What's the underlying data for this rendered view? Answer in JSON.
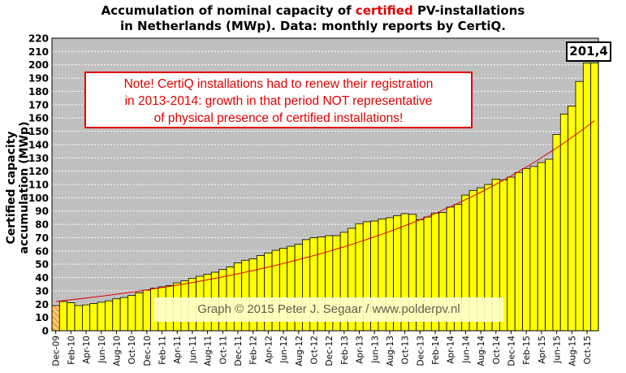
{
  "title": {
    "line1_pre": "Accumulation  of nominal  capacity  of ",
    "line1_highlight": "certified",
    "line1_post": " PV-installations",
    "line2": "in Netherlands (MWp). Data: monthly  reports by CertiQ."
  },
  "note": {
    "line1": "Note! CertiQ installations had to renew their registration",
    "line2": "in 2013-2014:  growth in that period NOT representative",
    "line3": "of physical presence of certified installations!"
  },
  "credit": "Graph © 2015 Peter J. Segaar / www.polderpv.nl",
  "last_value_label": "201,4",
  "colors": {
    "bar_fill": "#ffff00",
    "first_bar_fill": "#ffcc66",
    "bar_stroke": "#000000",
    "plot_bg": "#c0c0c0",
    "trend": "#e00000",
    "note_color": "#e00000"
  },
  "chart_data": {
    "type": "bar",
    "title": "Accumulation of nominal capacity of certified PV-installations in Netherlands (MWp). Data: monthly reports by CertiQ.",
    "xlabel": "",
    "ylabel": "Certified capacity accumulation (MWp)",
    "ylim": [
      0,
      220
    ],
    "yticks": [
      0,
      10,
      20,
      30,
      40,
      50,
      60,
      70,
      80,
      90,
      100,
      110,
      120,
      130,
      140,
      150,
      160,
      170,
      180,
      190,
      200,
      210,
      220
    ],
    "grid": true,
    "first_bar_hatched": true,
    "x_tick_labels": [
      "Dec-09",
      "Feb-10",
      "Apr-10",
      "Jun-10",
      "Aug-10",
      "Oct-10",
      "Dec-10",
      "Feb-11",
      "Apr-11",
      "Jun-11",
      "Aug-11",
      "Oct-11",
      "Dec-11",
      "Feb-12",
      "Apr-12",
      "Jun-12",
      "Aug-12",
      "Oct-12",
      "Dec-12",
      "Feb-13",
      "Apr-13",
      "Jun-13",
      "Aug-13",
      "Oct-13",
      "Dec-13",
      "Feb-14",
      "Apr-14",
      "Jun-14",
      "Aug-14",
      "Oct-14",
      "Dec-14",
      "Feb-15",
      "Apr-15",
      "Jun-15",
      "Aug-15",
      "Oct-15"
    ],
    "categories": [
      "Dec-09",
      "Jan-10",
      "Feb-10",
      "Mar-10",
      "Apr-10",
      "May-10",
      "Jun-10",
      "Jul-10",
      "Aug-10",
      "Sep-10",
      "Oct-10",
      "Nov-10",
      "Dec-10",
      "Jan-11",
      "Feb-11",
      "Mar-11",
      "Apr-11",
      "May-11",
      "Jun-11",
      "Jul-11",
      "Aug-11",
      "Sep-11",
      "Oct-11",
      "Nov-11",
      "Dec-11",
      "Jan-12",
      "Feb-12",
      "Mar-12",
      "Apr-12",
      "May-12",
      "Jun-12",
      "Jul-12",
      "Aug-12",
      "Sep-12",
      "Oct-12",
      "Nov-12",
      "Dec-12",
      "Jan-13",
      "Feb-13",
      "Mar-13",
      "Apr-13",
      "May-13",
      "Jun-13",
      "Jul-13",
      "Aug-13",
      "Sep-13",
      "Oct-13",
      "Nov-13",
      "Dec-13",
      "Jan-14",
      "Feb-14",
      "Mar-14",
      "Apr-14",
      "May-14",
      "Jun-14",
      "Jul-14",
      "Aug-14",
      "Sep-14",
      "Oct-14",
      "Nov-14",
      "Dec-14",
      "Jan-15",
      "Feb-15",
      "Mar-15",
      "Apr-15",
      "May-15",
      "Jun-15",
      "Jul-15",
      "Aug-15",
      "Sep-15",
      "Oct-15",
      "Nov-15"
    ],
    "values": [
      19,
      22,
      21,
      19,
      19.5,
      20.5,
      21.5,
      22.5,
      24,
      25,
      26.5,
      28.5,
      30.5,
      32,
      33,
      34,
      36,
      37.5,
      39.5,
      41,
      42.5,
      44,
      46,
      48,
      51,
      53,
      54,
      56.5,
      58.5,
      60.5,
      62,
      63.5,
      65,
      68.5,
      70,
      70.5,
      71.5,
      71.5,
      74,
      77,
      80.5,
      82,
      82.5,
      84,
      85,
      86.5,
      88,
      87.5,
      83.5,
      85.5,
      88.5,
      89,
      93,
      95,
      102,
      105.5,
      107.5,
      110,
      114,
      113.5,
      115.5,
      119,
      122,
      123.5,
      126.5,
      129,
      147.5,
      163,
      169,
      187.5,
      201.4,
      201.4
    ],
    "trend_line": {
      "type": "exponential",
      "start_value": 22,
      "end_value": 158
    },
    "last_value": 201.4
  }
}
